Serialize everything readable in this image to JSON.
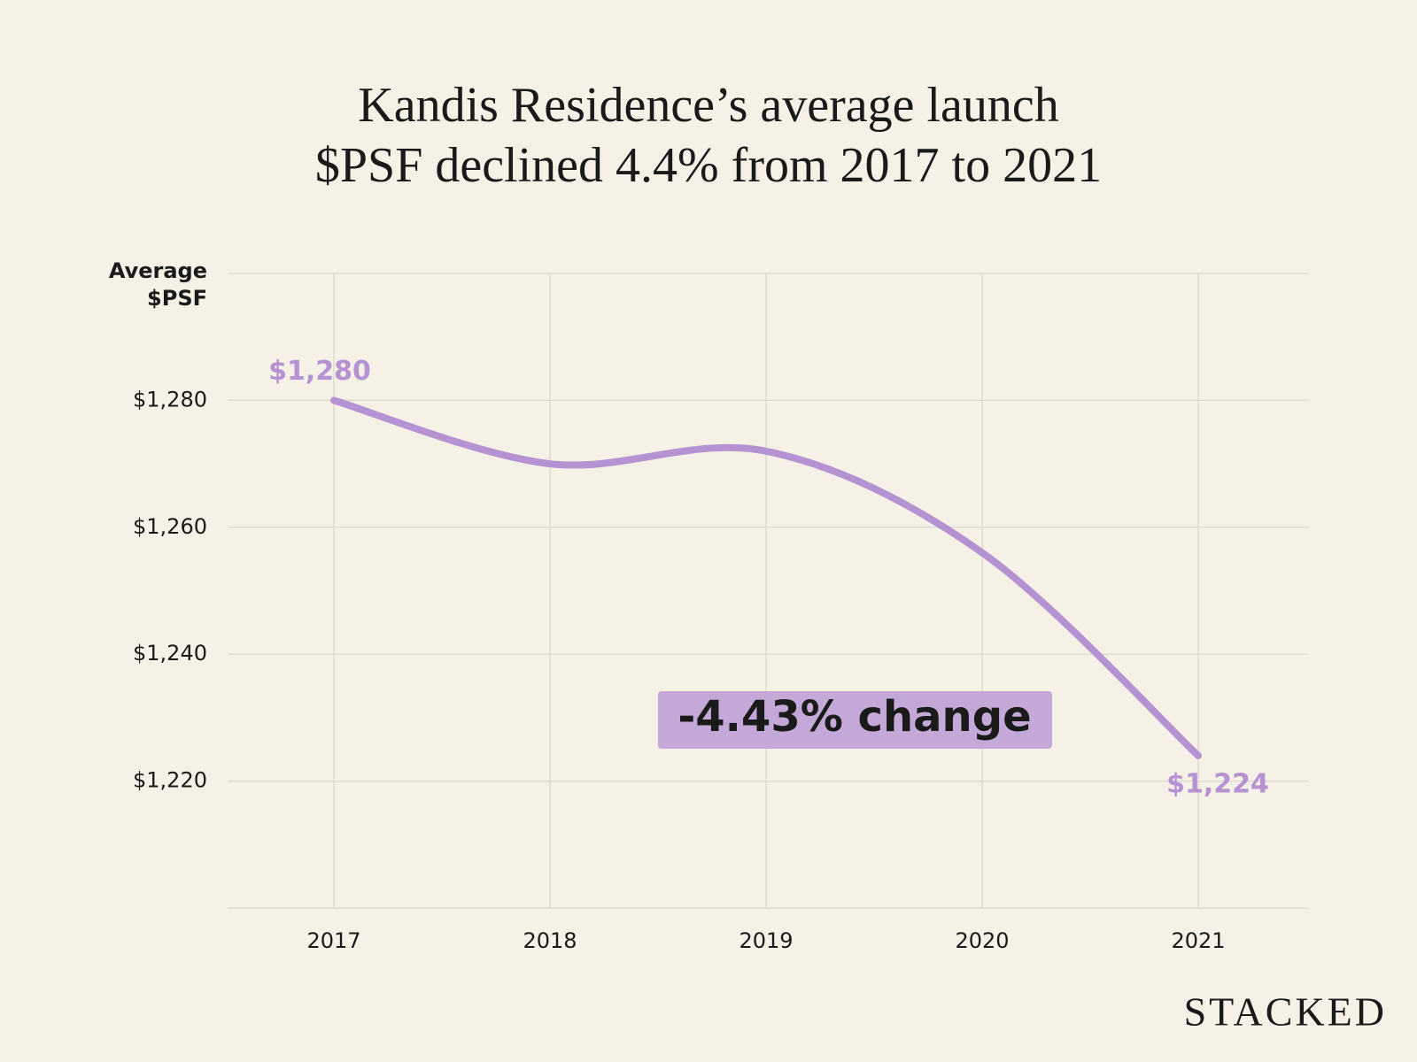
{
  "chart_data": {
    "type": "line",
    "title": [
      "Kandis Residence’s average launch",
      "$PSF declined 4.4% from 2017 to 2021"
    ],
    "ylabel": [
      "Average",
      "$PSF"
    ],
    "categories": [
      "2017",
      "2018",
      "2019",
      "2020",
      "2021"
    ],
    "values": [
      1280,
      1270,
      1272,
      1256,
      1224
    ],
    "value_labels": [
      "$1,280",
      null,
      null,
      null,
      "$1,224"
    ],
    "color": "#b592d2",
    "ylim": [
      1200,
      1300
    ],
    "yticks": [
      {
        "value": 1220,
        "label": "$1,220"
      },
      {
        "value": 1240,
        "label": "$1,240"
      },
      {
        "value": 1260,
        "label": "$1,260"
      },
      {
        "value": 1280,
        "label": "$1,280"
      }
    ],
    "grid": true,
    "annotation": "-4.43% change",
    "brand": "STACKED"
  }
}
